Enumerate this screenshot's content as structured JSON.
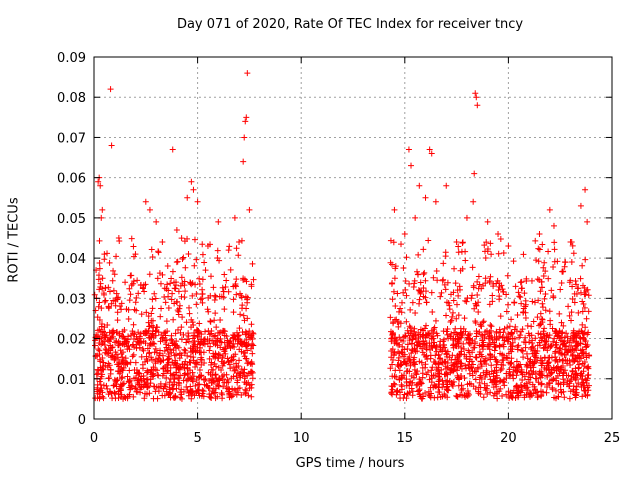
{
  "chart_data": {
    "type": "scatter",
    "title": "Day 071 of 2020, Rate Of TEC Index for receiver tncy",
    "xlabel": "GPS time / hours",
    "ylabel": "ROTI / TECUs",
    "xlim": [
      0,
      25
    ],
    "ylim": [
      0,
      0.09
    ],
    "xticks": [
      0,
      5,
      10,
      15,
      20,
      25
    ],
    "yticks": [
      0,
      0.01,
      0.02,
      0.03,
      0.04,
      0.05,
      0.06,
      0.07,
      0.08,
      0.09
    ],
    "ytick_labels": [
      "0",
      "0.01",
      "0.02",
      "0.03",
      "0.04",
      "0.05",
      "0.06",
      "0.07",
      "0.08",
      "0.09"
    ],
    "grid": true,
    "marker": "+",
    "color": "#ff0000",
    "series": [
      {
        "name": "ROTI",
        "segments": [
          {
            "x_start": 0.0,
            "x_end": 7.7
          },
          {
            "x_start": 14.3,
            "x_end": 23.9
          }
        ],
        "points": [
          [
            0.1,
            0.037
          ],
          [
            0.2,
            0.059
          ],
          [
            0.25,
            0.06
          ],
          [
            0.3,
            0.058
          ],
          [
            0.35,
            0.05
          ],
          [
            0.4,
            0.052
          ],
          [
            0.5,
            0.041
          ],
          [
            0.8,
            0.082
          ],
          [
            0.85,
            0.068
          ],
          [
            1.0,
            0.036
          ],
          [
            1.2,
            0.045
          ],
          [
            1.5,
            0.034
          ],
          [
            2.0,
            0.041
          ],
          [
            2.5,
            0.054
          ],
          [
            2.7,
            0.052
          ],
          [
            3.0,
            0.049
          ],
          [
            3.3,
            0.044
          ],
          [
            3.8,
            0.067
          ],
          [
            4.0,
            0.047
          ],
          [
            4.5,
            0.055
          ],
          [
            4.7,
            0.059
          ],
          [
            4.8,
            0.057
          ],
          [
            5.0,
            0.054
          ],
          [
            5.5,
            0.043
          ],
          [
            6.0,
            0.049
          ],
          [
            6.5,
            0.042
          ],
          [
            6.8,
            0.05
          ],
          [
            7.0,
            0.044
          ],
          [
            7.2,
            0.064
          ],
          [
            7.25,
            0.07
          ],
          [
            7.3,
            0.074
          ],
          [
            7.35,
            0.075
          ],
          [
            7.4,
            0.086
          ],
          [
            7.5,
            0.052
          ],
          [
            7.6,
            0.033
          ],
          [
            14.5,
            0.052
          ],
          [
            15.0,
            0.046
          ],
          [
            15.2,
            0.067
          ],
          [
            15.3,
            0.063
          ],
          [
            15.5,
            0.05
          ],
          [
            15.7,
            0.058
          ],
          [
            16.0,
            0.055
          ],
          [
            16.2,
            0.067
          ],
          [
            16.3,
            0.066
          ],
          [
            16.5,
            0.054
          ],
          [
            17.0,
            0.058
          ],
          [
            17.5,
            0.044
          ],
          [
            18.0,
            0.05
          ],
          [
            18.3,
            0.054
          ],
          [
            18.35,
            0.061
          ],
          [
            18.4,
            0.081
          ],
          [
            18.45,
            0.08
          ],
          [
            18.5,
            0.078
          ],
          [
            19.0,
            0.049
          ],
          [
            19.5,
            0.046
          ],
          [
            20.0,
            0.043
          ],
          [
            21.5,
            0.046
          ],
          [
            22.0,
            0.052
          ],
          [
            22.2,
            0.048
          ],
          [
            23.0,
            0.044
          ],
          [
            23.5,
            0.053
          ],
          [
            23.7,
            0.057
          ],
          [
            23.8,
            0.049
          ]
        ]
      }
    ]
  }
}
